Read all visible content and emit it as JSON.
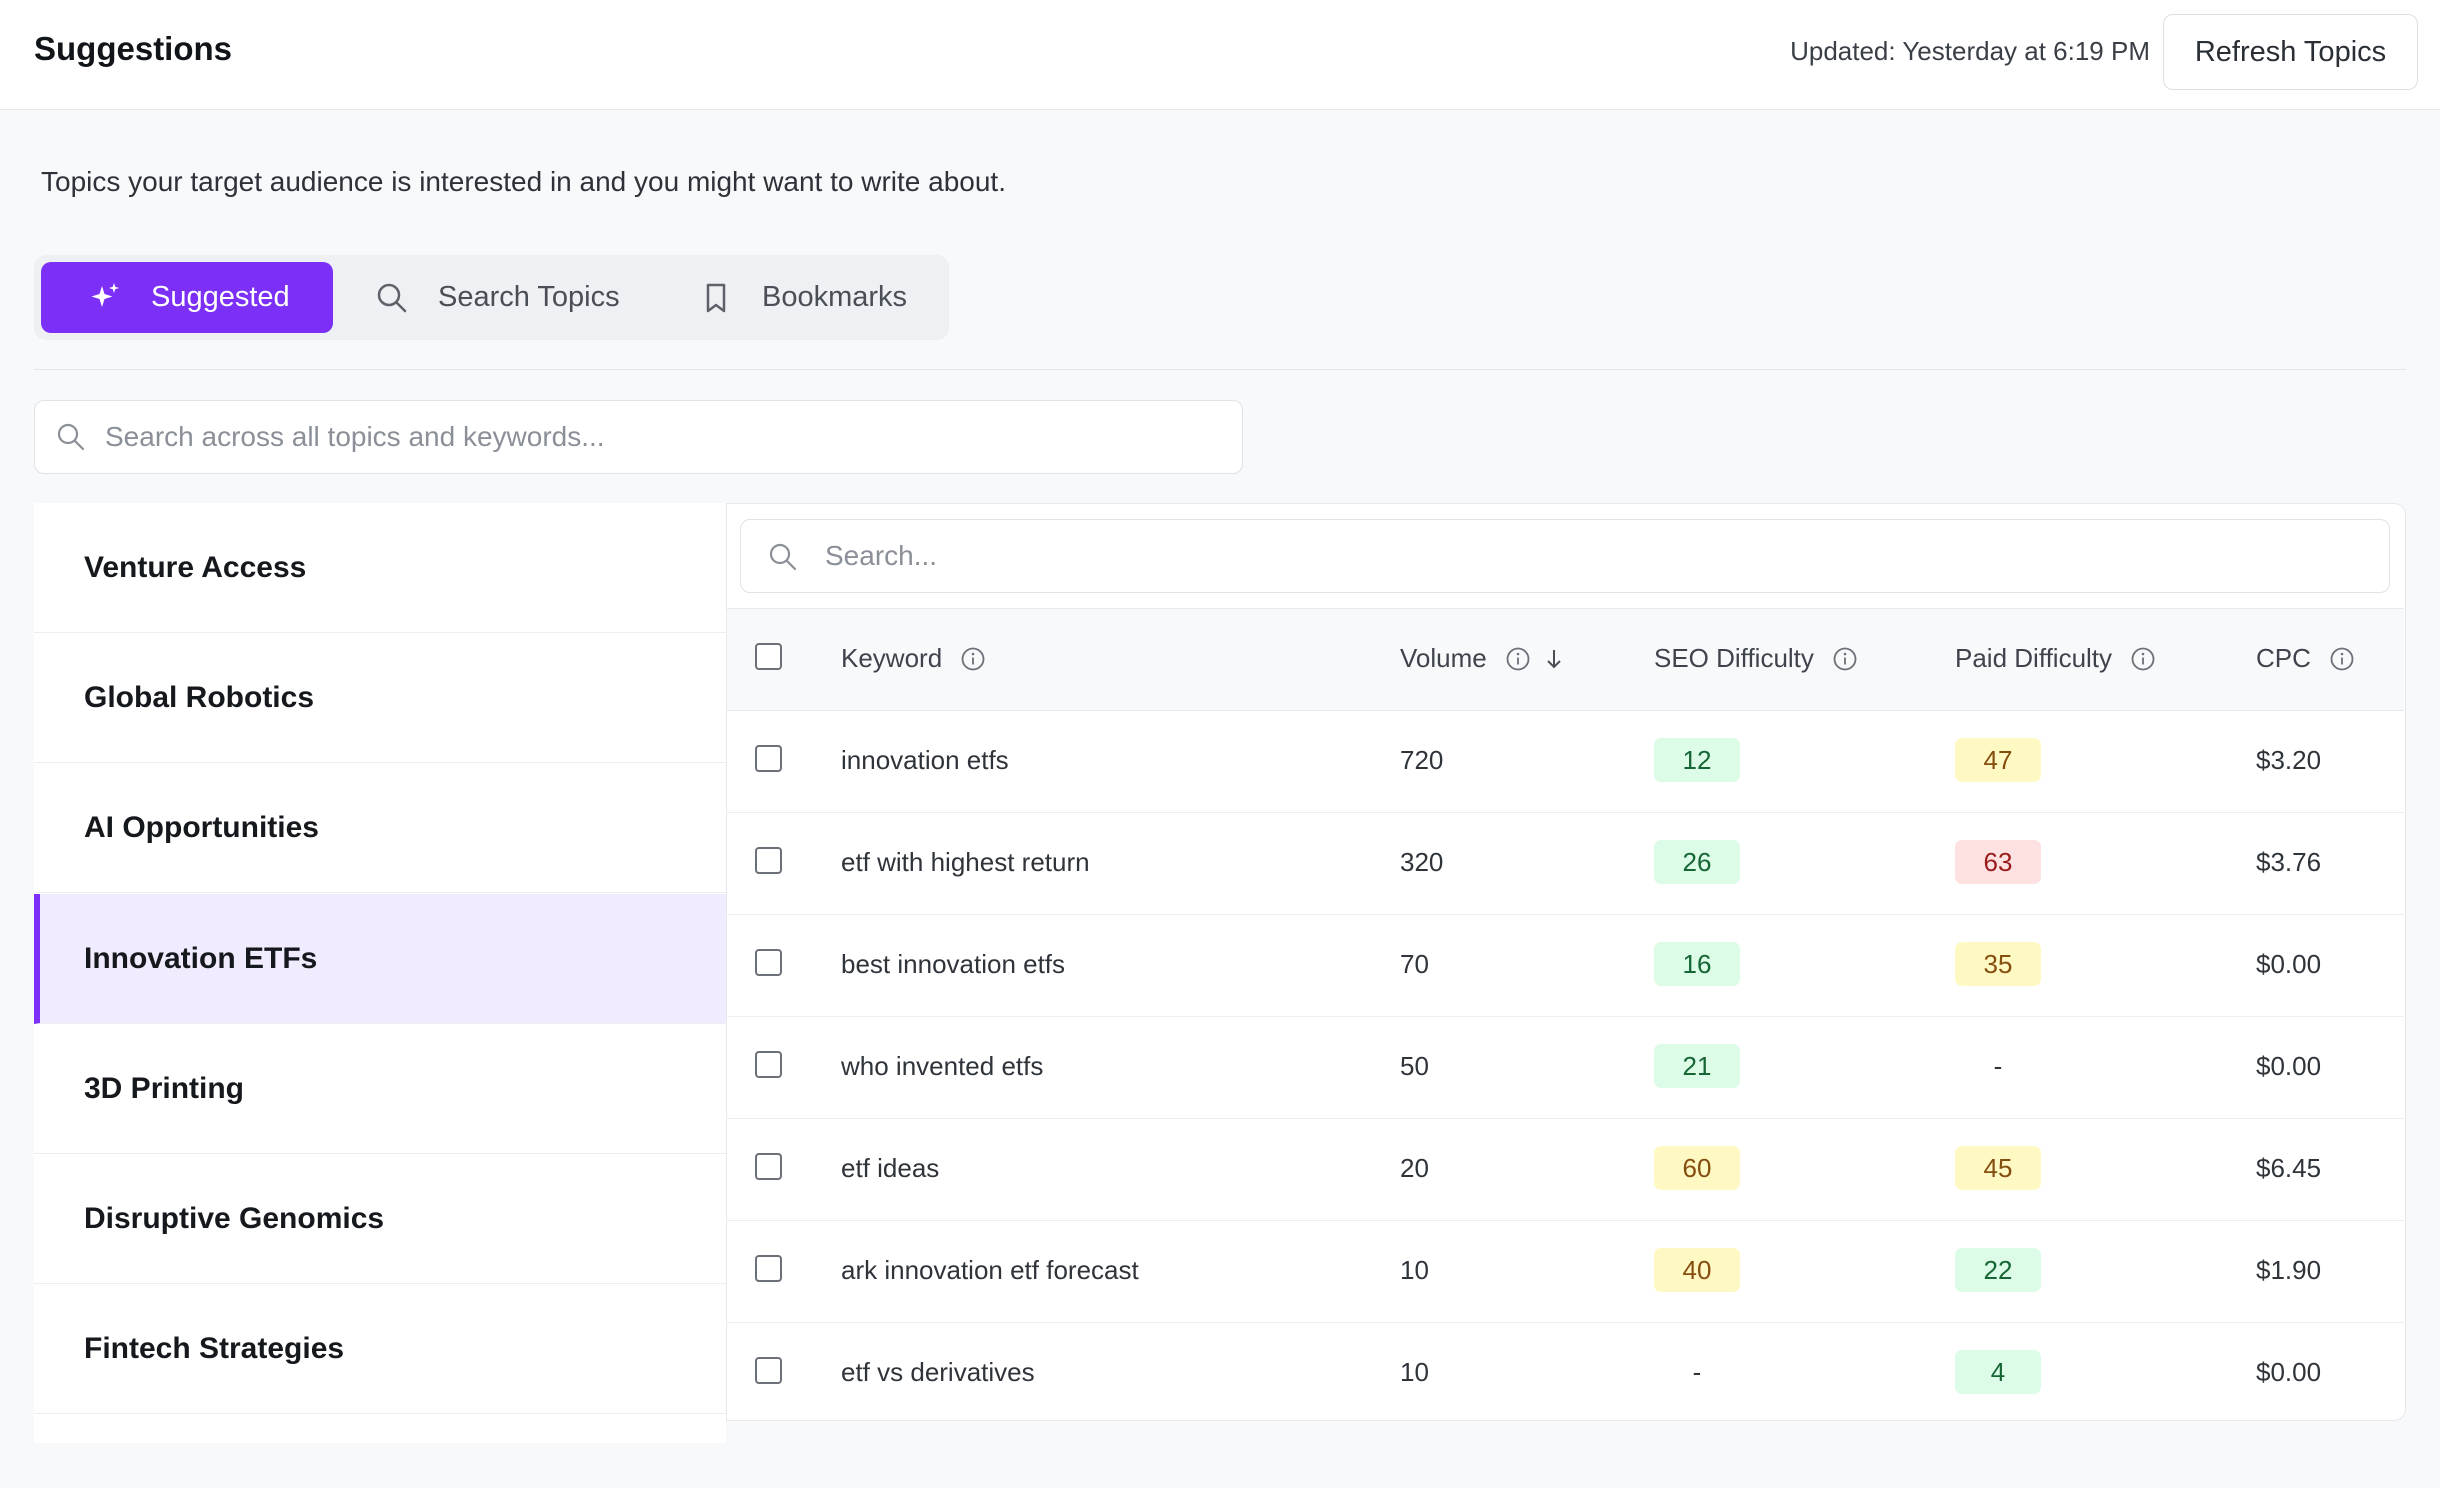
{
  "header": {
    "title": "Suggestions",
    "updated": "Updated: Yesterday at 6:19 PM",
    "refresh_label": "Refresh Topics"
  },
  "subtitle": "Topics your target audience is interested in and you might want to write about.",
  "tabs": [
    {
      "label": "Suggested",
      "icon": "sparkle-icon",
      "active": true
    },
    {
      "label": "Search Topics",
      "icon": "search-icon",
      "active": false
    },
    {
      "label": "Bookmarks",
      "icon": "bookmark-icon",
      "active": false
    }
  ],
  "global_search": {
    "placeholder": "Search across all topics and keywords..."
  },
  "sidebar": {
    "items": [
      {
        "label": "Venture Access"
      },
      {
        "label": "Global Robotics"
      },
      {
        "label": "AI Opportunities"
      },
      {
        "label": "Innovation ETFs",
        "active": true
      },
      {
        "label": "3D Printing"
      },
      {
        "label": "Disruptive Genomics"
      },
      {
        "label": "Fintech Strategies"
      }
    ]
  },
  "table": {
    "search_placeholder": "Search...",
    "columns": {
      "keyword": "Keyword",
      "volume": "Volume",
      "seo": "SEO Difficulty",
      "paid": "Paid Difficulty",
      "cpc": "CPC"
    },
    "sort": {
      "column": "volume",
      "direction": "descending"
    },
    "rows": [
      {
        "keyword": "innovation etfs",
        "volume": "720",
        "seo": "12",
        "seo_level": "green",
        "paid": "47",
        "paid_level": "yellow",
        "cpc": "$3.20"
      },
      {
        "keyword": "etf with highest return",
        "volume": "320",
        "seo": "26",
        "seo_level": "green",
        "paid": "63",
        "paid_level": "red",
        "cpc": "$3.76"
      },
      {
        "keyword": "best innovation etfs",
        "volume": "70",
        "seo": "16",
        "seo_level": "green",
        "paid": "35",
        "paid_level": "yellow",
        "cpc": "$0.00"
      },
      {
        "keyword": "who invented etfs",
        "volume": "50",
        "seo": "21",
        "seo_level": "green",
        "paid": "-",
        "paid_level": "none",
        "cpc": "$0.00"
      },
      {
        "keyword": "etf ideas",
        "volume": "20",
        "seo": "60",
        "seo_level": "yellow",
        "paid": "45",
        "paid_level": "yellow",
        "cpc": "$6.45"
      },
      {
        "keyword": "ark innovation etf forecast",
        "volume": "10",
        "seo": "40",
        "seo_level": "yellow",
        "paid": "22",
        "paid_level": "green",
        "cpc": "$1.90"
      },
      {
        "keyword": "etf vs derivatives",
        "volume": "10",
        "seo": "-",
        "seo_level": "none",
        "paid": "4",
        "paid_level": "green",
        "cpc": "$0.00"
      }
    ]
  },
  "colors": {
    "accent": "#7b2ff7",
    "active_row_bg": "#f0ebfe",
    "badge_green": "#dcfce7",
    "badge_yellow": "#fef9c3",
    "badge_red": "#fee2e2"
  }
}
